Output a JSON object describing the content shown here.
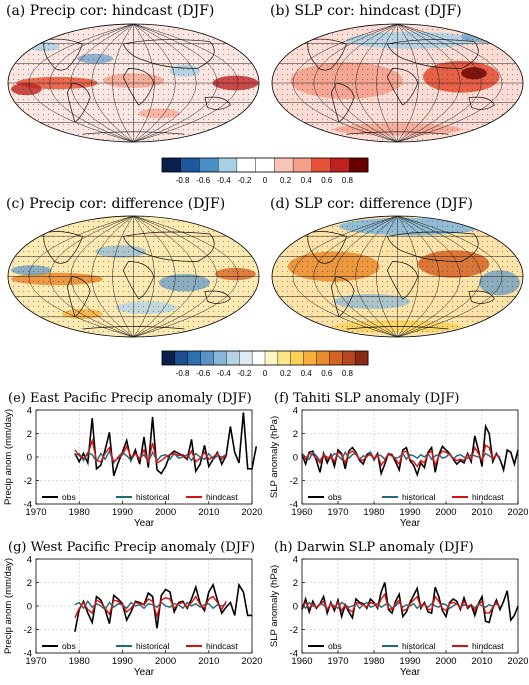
{
  "maps": [
    {
      "id": "a",
      "title": "(a) Precip cor: hindcast (DJF)",
      "style": "precip-hindcast"
    },
    {
      "id": "b",
      "title": "(b) SLP cor: hindcast (DJF)",
      "style": "slp-hindcast"
    },
    {
      "id": "c",
      "title": "(c) Precip cor: difference (DJF)",
      "style": "precip-diff"
    },
    {
      "id": "d",
      "title": "(d) SLP cor: difference (DJF)",
      "style": "slp-diff"
    }
  ],
  "colorbars": [
    {
      "id": "cb1",
      "colors": [
        "#0a1f4c",
        "#1d58a0",
        "#4a8fc4",
        "#a7d0e4",
        "#ffffff",
        "#ffffff",
        "#fac4b8",
        "#f6a08c",
        "#e65236",
        "#c0201f",
        "#670000"
      ],
      "ticks": [
        -0.8,
        -0.6,
        -0.4,
        -0.2,
        0,
        0.2,
        0.4,
        0.6,
        0.8
      ],
      "tick_labels": [
        "-0.8",
        "-0.6",
        "-0.4",
        "-0.2",
        "0",
        "0.2",
        "0.4",
        "0.6",
        "0.8"
      ]
    },
    {
      "id": "cb2",
      "colors": [
        "#0a1f4c",
        "#1d4f8f",
        "#2f6faf",
        "#5894c6",
        "#86b6d8",
        "#b4d3e6",
        "#dfeaf1",
        "#ffffff",
        "#fff5c2",
        "#fde58a",
        "#fccf57",
        "#f7ae3d",
        "#ea8a2b",
        "#d66324",
        "#b6461e",
        "#8c2a14"
      ],
      "ticks": [
        -0.8,
        -0.6,
        -0.4,
        -0.2,
        0,
        0.2,
        0.4,
        0.6,
        0.8
      ],
      "tick_labels": [
        "-0.8",
        "-0.6",
        "-0.4",
        "-0.2",
        "0",
        "0.2",
        "0.4",
        "0.6",
        "0.8"
      ]
    }
  ],
  "chart_data": [
    {
      "id": "e",
      "type": "line",
      "title": "(e) East Pacific Precip anomaly (DJF)",
      "xlabel": "Year",
      "ylabel": "Precip anom (mm/day)",
      "xlim": [
        1970,
        2020
      ],
      "ylim": [
        -4,
        4
      ],
      "xticks": [
        1970,
        1980,
        1990,
        2000,
        2010,
        2020
      ],
      "yticks": [
        -4,
        -2,
        0,
        2,
        4
      ],
      "x_start": 1979,
      "series": [
        {
          "name": "obs",
          "color": "#000000",
          "values": [
            0.3,
            -0.4,
            0.3,
            -0.5,
            3.3,
            -1.0,
            -0.7,
            0.6,
            2.1,
            -1.6,
            -0.5,
            0.4,
            1.4,
            -0.3,
            0.6,
            -0.6,
            1.7,
            -0.9,
            3.4,
            -1.1,
            -1.4,
            -0.8,
            0.2,
            0.5,
            0.3,
            0.1,
            -0.2,
            1.5,
            -1.2,
            -0.6,
            1.0,
            -0.8,
            -0.2,
            0.4,
            -0.6,
            0.1,
            2.6,
            0.4,
            -0.5,
            3.8,
            -1.0,
            -1.0,
            0.9
          ]
        },
        {
          "name": "historical",
          "color": "#1d6b7a",
          "values": [
            0.1,
            0.3,
            -0.3,
            0.4,
            0.2,
            -0.4,
            0.3,
            -0.2,
            0.5,
            -0.5,
            0.0,
            0.4,
            0.1,
            -0.3,
            0.3,
            -0.1,
            0.2,
            -0.4,
            0.4,
            -0.3,
            0.1,
            0.2,
            -0.2,
            0.3,
            -0.1,
            0.0,
            0.2,
            -0.3,
            0.3,
            0.0,
            -0.2,
            0.3,
            -0.2,
            0.1,
            0.0,
            0.2
          ]
        },
        {
          "name": "hindcast",
          "color": "#dd1010",
          "values": [
            0.6,
            0.1,
            -0.1,
            0.2,
            1.4,
            -0.3,
            -0.4,
            0.3,
            0.8,
            -0.4,
            -0.1,
            0.2,
            0.9,
            0.0,
            0.3,
            -0.2,
            0.6,
            -0.4,
            1.2,
            -0.5,
            -0.3,
            0.0,
            0.2,
            0.3,
            0.1,
            0.2,
            -0.1,
            0.5,
            -0.4,
            -0.1,
            0.4,
            -0.2,
            0.0,
            0.3,
            -0.2,
            0.2
          ]
        }
      ],
      "legend_position": "bottom"
    },
    {
      "id": "f",
      "type": "line",
      "title": "(f) Tahiti SLP anomaly (DJF)",
      "xlabel": "Year",
      "ylabel": "SLP anomaly (hPa)",
      "xlim": [
        1960,
        2020
      ],
      "ylim": [
        -4,
        4
      ],
      "xticks": [
        1960,
        1970,
        1980,
        1990,
        2000,
        2010,
        2020
      ],
      "yticks": [
        -4,
        -2,
        0,
        2,
        4
      ],
      "x_start": 1960,
      "series": [
        {
          "name": "obs",
          "color": "#000000",
          "values": [
            0.2,
            -0.6,
            0.4,
            0.5,
            -0.3,
            -1.3,
            0.3,
            -0.5,
            0.2,
            -0.8,
            0.6,
            0.3,
            -1.0,
            0.5,
            0.8,
            0.4,
            -0.3,
            -0.6,
            0.2,
            0.4,
            -0.2,
            0.3,
            -1.4,
            -0.6,
            0.3,
            0.2,
            -0.4,
            -1.1,
            0.6,
            0.8,
            -0.3,
            -0.7,
            -1.5,
            -0.5,
            -0.9,
            0.4,
            0.8,
            -1.3,
            0.2,
            0.9,
            0.6,
            0.3,
            -0.2,
            -0.6,
            -0.3,
            -0.5,
            0.3,
            -0.4,
            1.8,
            0.6,
            -0.8,
            2.6,
            2.0,
            -0.4,
            0.3,
            -0.2,
            -1.1,
            0.6,
            0.4,
            -0.6,
            0.6
          ]
        },
        {
          "name": "historical",
          "color": "#1d6b7a",
          "values": [
            0.3,
            0.0,
            -0.2,
            0.4,
            0.1,
            -0.3,
            0.2,
            0.0,
            -0.1,
            0.3,
            0.1,
            -0.2,
            0.4,
            -0.1,
            0.2,
            0.3,
            -0.2,
            0.1,
            0.0,
            0.4,
            -0.3,
            0.2,
            0.1,
            -0.2,
            0.3,
            0.1,
            -0.1,
            0.0,
            0.3,
            -0.2,
            0.2,
            0.1,
            -0.1,
            0.2,
            0.0,
            0.3,
            -0.2,
            0.1,
            0.2,
            -0.1,
            0.0,
            0.3,
            -0.2,
            0.1,
            0.2,
            0.0,
            -0.1,
            0.2,
            0.1,
            0.0,
            -0.2,
            0.3,
            0.1,
            -0.1,
            0.2,
            0.0
          ]
        },
        {
          "name": "hindcast",
          "color": "#dd1010",
          "values": [
            0.1,
            -0.2,
            0.3,
            0.2,
            -0.1,
            -0.5,
            0.2,
            -0.2,
            0.1,
            -0.4,
            0.4,
            0.2,
            -0.5,
            0.3,
            0.5,
            0.2,
            -0.2,
            -0.3,
            0.1,
            0.2,
            -0.1,
            0.2,
            -0.7,
            -0.3,
            0.2,
            0.1,
            -0.2,
            -0.6,
            0.4,
            0.5,
            -0.2,
            -0.4,
            -0.8,
            -0.3,
            -0.5,
            0.3,
            0.5,
            -0.7,
            0.1,
            0.5,
            0.4,
            0.2,
            -0.1,
            -0.3,
            -0.2,
            -0.3,
            0.2,
            -0.2,
            0.8,
            0.3,
            -0.3,
            1.0,
            0.8,
            -0.2,
            0.2,
            -0.1
          ]
        }
      ],
      "legend_position": "bottom"
    },
    {
      "id": "g",
      "type": "line",
      "title": "(g) West Pacific Precip anomaly (DJF)",
      "xlabel": "Year",
      "ylabel": "Precip anom (mm/day)",
      "xlim": [
        1970,
        2020
      ],
      "ylim": [
        -4,
        4
      ],
      "xticks": [
        1970,
        1980,
        1990,
        2000,
        2010,
        2020
      ],
      "yticks": [
        -4,
        -2,
        0,
        2,
        4
      ],
      "x_start": 1979,
      "series": [
        {
          "name": "obs",
          "color": "#000000",
          "values": [
            -2.2,
            -0.3,
            0.4,
            -0.6,
            -1.4,
            0.8,
            0.5,
            -0.3,
            -1.5,
            0.9,
            0.6,
            0.2,
            -1.2,
            -0.5,
            0.4,
            0.3,
            0.1,
            1.1,
            0.8,
            -1.9,
            0.9,
            1.4,
            1.2,
            -0.5,
            0.3,
            0.4,
            -0.2,
            0.6,
            1.6,
            0.2,
            -0.4,
            1.2,
            1.8,
            0.5,
            -0.6,
            -0.1,
            0.3,
            -0.8,
            1.8,
            1.2,
            -0.8,
            -0.8
          ]
        },
        {
          "name": "historical",
          "color": "#1d6b7a",
          "values": [
            0.1,
            0.3,
            -0.2,
            0.4,
            -0.1,
            0.2,
            0.0,
            -0.3,
            0.3,
            -0.1,
            0.2,
            0.1,
            -0.2,
            0.3,
            0.0,
            0.1,
            -0.2,
            0.2,
            0.1,
            -0.1,
            0.3,
            0.0,
            -0.1,
            0.2,
            0.1,
            -0.2,
            0.3,
            0.0,
            0.2,
            -0.1,
            0.1,
            0.2,
            -0.2,
            0.1,
            0.0,
            0.2
          ]
        },
        {
          "name": "hindcast",
          "color": "#dd1010",
          "values": [
            -1.0,
            -0.2,
            0.3,
            -0.3,
            -0.6,
            0.5,
            0.3,
            -0.2,
            -0.7,
            0.5,
            0.4,
            0.1,
            -0.5,
            -0.2,
            0.3,
            0.2,
            0.1,
            0.6,
            0.4,
            -0.9,
            0.5,
            0.7,
            0.6,
            -0.2,
            0.2,
            0.3,
            -0.1,
            0.3,
            0.8,
            0.1,
            -0.2,
            0.6,
            0.8,
            0.3,
            -0.3,
            0.4
          ]
        }
      ],
      "legend_position": "bottom"
    },
    {
      "id": "h",
      "type": "line",
      "title": "(h) Darwin SLP anomaly (DJF)",
      "xlabel": "Year",
      "ylabel": "SLP anomaly (hPa)",
      "xlim": [
        1960,
        2020
      ],
      "ylim": [
        -4,
        4
      ],
      "xticks": [
        1960,
        1970,
        1980,
        1990,
        2000,
        2010,
        2020
      ],
      "yticks": [
        -4,
        -2,
        0,
        2,
        4
      ],
      "x_start": 1960,
      "series": [
        {
          "name": "obs",
          "color": "#000000",
          "values": [
            -0.3,
            0.6,
            -0.5,
            0.4,
            -0.2,
            0.2,
            0.8,
            -0.6,
            0.3,
            -0.4,
            0.5,
            -0.9,
            0.1,
            -0.5,
            -1.0,
            0.6,
            0.3,
            0.2,
            -0.2,
            0.6,
            0.3,
            -0.2,
            1.2,
            2.0,
            -0.3,
            -0.6,
            0.4,
            1.0,
            -0.9,
            -0.5,
            0.3,
            0.9,
            1.5,
            -0.2,
            0.3,
            -0.5,
            -0.6,
            1.6,
            0.8,
            -0.4,
            -0.9,
            0.3,
            0.6,
            0.4,
            -0.3,
            0.7,
            -0.2,
            0.1,
            -0.8,
            0.2,
            0.8,
            -1.3,
            -1.4,
            -0.2,
            0.5,
            -0.3,
            0.4,
            1.3,
            -1.2,
            -0.8,
            0.0
          ]
        },
        {
          "name": "historical",
          "color": "#1d6b7a",
          "values": [
            0.1,
            -0.2,
            0.3,
            0.0,
            -0.1,
            0.2,
            0.1,
            -0.3,
            0.2,
            0.0,
            -0.2,
            0.3,
            0.1,
            -0.1,
            0.0,
            0.2,
            -0.2,
            0.1,
            0.3,
            -0.1,
            0.0,
            0.2,
            -0.1,
            0.1,
            0.2,
            -0.2,
            0.0,
            0.3,
            -0.1,
            0.1,
            0.0,
            0.2,
            -0.2,
            0.1,
            0.1,
            -0.1,
            0.2,
            0.0,
            -0.1,
            0.2,
            0.1,
            -0.2,
            0.0,
            0.2,
            -0.1,
            0.1,
            0.0,
            0.1,
            -0.2,
            0.2,
            0.0,
            -0.1,
            0.1,
            0.0,
            0.2,
            -0.1
          ]
        },
        {
          "name": "hindcast",
          "color": "#dd1010",
          "values": [
            -0.1,
            0.3,
            -0.2,
            0.2,
            -0.1,
            0.1,
            0.4,
            -0.3,
            0.2,
            -0.2,
            0.3,
            -0.4,
            0.1,
            -0.3,
            -0.5,
            0.3,
            0.2,
            0.1,
            -0.1,
            0.3,
            0.2,
            -0.1,
            0.6,
            1.0,
            -0.2,
            -0.3,
            0.2,
            0.5,
            -0.4,
            -0.3,
            0.2,
            0.5,
            0.8,
            -0.1,
            0.2,
            -0.3,
            -0.3,
            0.8,
            0.4,
            -0.2,
            -0.4,
            0.2,
            0.3,
            0.2,
            -0.2,
            0.4,
            -0.1,
            0.1,
            -0.4,
            0.1,
            0.4,
            -0.6,
            -0.6,
            -0.1,
            0.3,
            -0.1
          ]
        }
      ],
      "legend_position": "bottom"
    }
  ]
}
